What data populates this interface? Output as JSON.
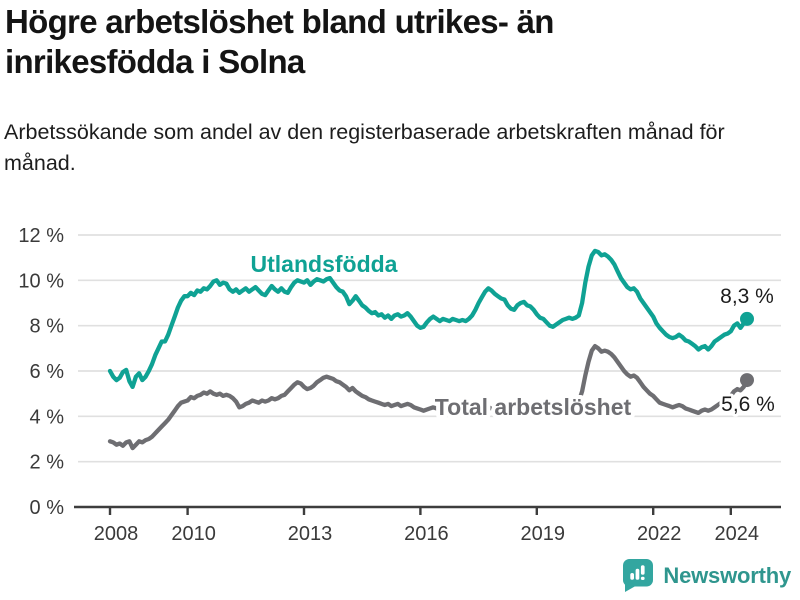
{
  "header": {
    "title": "Högre arbetslöshet bland utrikes- än inrikesfödda i Solna",
    "subtitle": "Arbetssökande som andel av den registerbaserade arbetskraften månad för månad."
  },
  "footer": {
    "brand": "Newsworthy",
    "brand_color": "#2f968e",
    "logo_icon": "speech-bubble-bar-chart-icon",
    "logo_color": "#33a6a0"
  },
  "chart_data": {
    "type": "line",
    "title": "Högre arbetslöshet bland utrikes- än inrikesfödda i Solna",
    "subtitle": "Arbetssökande som andel av den registerbaserade arbetskraften månad för månad.",
    "unit": "percent",
    "x_interval": "monthly",
    "x_start": "2008-01",
    "x_end": "2024-06",
    "ylim": [
      0,
      12
    ],
    "grid": "horizontal",
    "legend_position": "inline-labels",
    "y_ticks": [
      {
        "value": 0,
        "label": "0 %"
      },
      {
        "value": 2,
        "label": "2 %"
      },
      {
        "value": 4,
        "label": "4 %"
      },
      {
        "value": 6,
        "label": "6 %"
      },
      {
        "value": 8,
        "label": "8 %"
      },
      {
        "value": 10,
        "label": "10 %"
      },
      {
        "value": 12,
        "label": "12 %"
      }
    ],
    "x_ticks": [
      {
        "year": 2008,
        "label": "2008"
      },
      {
        "year": 2010,
        "label": "2010"
      },
      {
        "year": 2013,
        "label": "2013"
      },
      {
        "year": 2016,
        "label": "2016"
      },
      {
        "year": 2019,
        "label": "2019"
      },
      {
        "year": 2022,
        "label": "2022"
      },
      {
        "year": 2024,
        "label": "2024"
      }
    ],
    "series": [
      {
        "name": "Utlandsfödda",
        "color": "#0fa294",
        "end_label": "8,3 %",
        "last_value": 8.3,
        "values": [
          6.0,
          5.75,
          5.6,
          5.7,
          5.95,
          6.05,
          5.55,
          5.3,
          5.75,
          5.9,
          5.6,
          5.75,
          6.0,
          6.3,
          6.7,
          7.0,
          7.3,
          7.3,
          7.6,
          8.0,
          8.4,
          8.8,
          9.1,
          9.3,
          9.3,
          9.45,
          9.35,
          9.55,
          9.5,
          9.65,
          9.6,
          9.75,
          9.95,
          10.0,
          9.8,
          9.9,
          9.85,
          9.6,
          9.5,
          9.6,
          9.45,
          9.55,
          9.65,
          9.5,
          9.6,
          9.7,
          9.55,
          9.4,
          9.35,
          9.55,
          9.75,
          9.6,
          9.5,
          9.65,
          9.5,
          9.45,
          9.7,
          9.9,
          10.0,
          9.95,
          9.9,
          10.0,
          9.8,
          9.95,
          10.05,
          10.0,
          9.95,
          10.05,
          10.1,
          9.9,
          9.7,
          9.55,
          9.5,
          9.3,
          8.95,
          9.1,
          9.3,
          9.1,
          8.9,
          8.8,
          8.65,
          8.55,
          8.6,
          8.45,
          8.5,
          8.35,
          8.45,
          8.3,
          8.45,
          8.5,
          8.4,
          8.45,
          8.55,
          8.4,
          8.2,
          8.0,
          7.9,
          7.95,
          8.15,
          8.3,
          8.4,
          8.3,
          8.2,
          8.3,
          8.25,
          8.2,
          8.3,
          8.25,
          8.2,
          8.25,
          8.2,
          8.3,
          8.45,
          8.7,
          9.0,
          9.25,
          9.5,
          9.65,
          9.55,
          9.4,
          9.3,
          9.2,
          9.15,
          8.9,
          8.75,
          8.7,
          8.9,
          9.0,
          9.05,
          8.9,
          8.85,
          8.7,
          8.5,
          8.35,
          8.3,
          8.15,
          8.0,
          7.95,
          8.05,
          8.15,
          8.25,
          8.3,
          8.35,
          8.3,
          8.35,
          8.45,
          9.0,
          9.9,
          10.6,
          11.1,
          11.3,
          11.25,
          11.1,
          11.15,
          11.05,
          10.9,
          10.7,
          10.4,
          10.1,
          9.9,
          9.7,
          9.6,
          9.65,
          9.5,
          9.2,
          9.0,
          8.8,
          8.6,
          8.4,
          8.1,
          7.9,
          7.75,
          7.6,
          7.5,
          7.45,
          7.5,
          7.6,
          7.5,
          7.35,
          7.3,
          7.2,
          7.1,
          6.95,
          7.05,
          7.1,
          6.95,
          7.1,
          7.3,
          7.4,
          7.5,
          7.6,
          7.65,
          7.75,
          8.0,
          8.1,
          7.9,
          8.1,
          8.3
        ]
      },
      {
        "name": "Total arbetslöshet",
        "color": "#6e6e72",
        "end_label": "5,6 %",
        "last_value": 5.6,
        "values": [
          2.9,
          2.85,
          2.75,
          2.8,
          2.7,
          2.85,
          2.9,
          2.6,
          2.75,
          2.9,
          2.85,
          2.95,
          3.0,
          3.1,
          3.25,
          3.4,
          3.55,
          3.7,
          3.85,
          4.05,
          4.25,
          4.45,
          4.6,
          4.65,
          4.7,
          4.85,
          4.8,
          4.9,
          4.95,
          5.05,
          5.0,
          5.1,
          5.0,
          4.95,
          5.0,
          4.9,
          4.95,
          4.9,
          4.8,
          4.65,
          4.4,
          4.45,
          4.55,
          4.6,
          4.7,
          4.65,
          4.6,
          4.7,
          4.65,
          4.7,
          4.8,
          4.75,
          4.8,
          4.9,
          4.95,
          5.1,
          5.25,
          5.4,
          5.5,
          5.45,
          5.3,
          5.2,
          5.25,
          5.35,
          5.5,
          5.6,
          5.7,
          5.75,
          5.7,
          5.65,
          5.55,
          5.5,
          5.4,
          5.3,
          5.15,
          5.25,
          5.1,
          5.0,
          4.9,
          4.85,
          4.75,
          4.7,
          4.65,
          4.6,
          4.55,
          4.5,
          4.55,
          4.45,
          4.5,
          4.55,
          4.45,
          4.5,
          4.55,
          4.5,
          4.4,
          4.35,
          4.3,
          4.25,
          4.3,
          4.35,
          4.4,
          4.35,
          4.25,
          4.3,
          4.35,
          4.3,
          4.25,
          4.3,
          4.25,
          4.3,
          4.25,
          4.3,
          4.35,
          4.3,
          4.35,
          4.4,
          4.45,
          4.4,
          4.35,
          4.3,
          4.3,
          4.25,
          4.2,
          4.25,
          4.2,
          4.25,
          4.3,
          4.35,
          4.3,
          4.25,
          4.3,
          4.25,
          4.3,
          4.25,
          4.2,
          4.25,
          4.3,
          4.35,
          4.3,
          4.4,
          4.45,
          4.5,
          4.55,
          4.5,
          4.55,
          4.65,
          5.1,
          5.8,
          6.4,
          6.9,
          7.1,
          7.0,
          6.85,
          6.9,
          6.85,
          6.75,
          6.6,
          6.4,
          6.2,
          6.0,
          5.85,
          5.75,
          5.8,
          5.7,
          5.5,
          5.3,
          5.15,
          5.0,
          4.9,
          4.75,
          4.6,
          4.55,
          4.5,
          4.45,
          4.4,
          4.45,
          4.5,
          4.45,
          4.35,
          4.3,
          4.25,
          4.2,
          4.15,
          4.25,
          4.3,
          4.25,
          4.3,
          4.4,
          4.5,
          4.6,
          4.7,
          4.8,
          4.9,
          5.1,
          5.2,
          5.15,
          5.3,
          5.6
        ]
      }
    ]
  }
}
